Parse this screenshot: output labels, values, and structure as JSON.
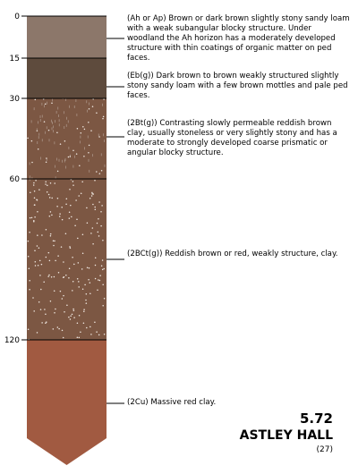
{
  "depths": [
    "0",
    "15",
    "30",
    "60",
    "120"
  ],
  "horizons": [
    {
      "description": "(Ah or Ap) Brown or dark brown slightly stony sandy loam with a weak subangular blocky structure. Under woodland the Ah horizon has a moderately developed structure with thin coatings of organic matter on ped faces.",
      "color": "#8c776a"
    },
    {
      "description": "(Eb(g)) Dark brown to brown weakly structured slightly stony sandy loam with a few brown mottles and pale ped faces.",
      "color": "#5e4b3d"
    },
    {
      "description": "(2Bt(g)) Contrasting slowly permeable reddish brown clay, usually stoneless or very slightly stony and has a moderate to strongly developed coarse prismatic or angular blocky structure.",
      "color": "#7c5743"
    },
    {
      "description": "(2BCt(g)) Reddish brown or red, weakly structure, clay.",
      "color": "#7c5743"
    },
    {
      "description": "(2Cu) Massive red clay.",
      "color": "#a15a41"
    }
  ],
  "soil_code": "5.72",
  "soil_name": "ASTLEY HALL",
  "soil_number": "(27)"
}
